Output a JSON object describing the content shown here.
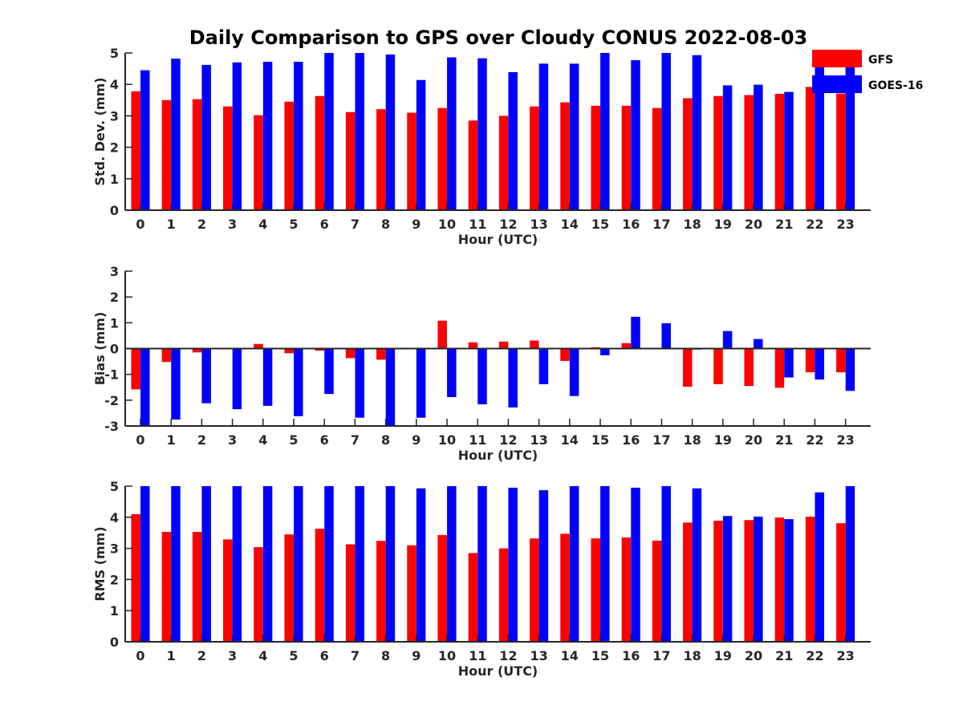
{
  "title": "Daily Comparison to GPS over Cloudy CONUS 2022-08-03",
  "colors": {
    "GFS": "#ff0000",
    "GOES-16": "#0000ff",
    "axis": "#262626"
  },
  "legend": {
    "placement": "top-right",
    "entries": [
      "GFS",
      "GOES-16"
    ]
  },
  "chart_data": [
    {
      "type": "bar",
      "xlabel": "Hour (UTC)",
      "ylabel": "Std. Dev. (mm)",
      "ylim": [
        0,
        5
      ],
      "yticks": [
        "0",
        "1",
        "2",
        "3",
        "4",
        "5"
      ],
      "categories": [
        "0",
        "1",
        "2",
        "3",
        "4",
        "5",
        "6",
        "7",
        "8",
        "9",
        "10",
        "11",
        "12",
        "13",
        "14",
        "15",
        "16",
        "17",
        "18",
        "19",
        "20",
        "21",
        "22",
        "23"
      ],
      "series": [
        {
          "name": "GFS",
          "values": [
            3.78,
            3.5,
            3.53,
            3.3,
            3.02,
            3.45,
            3.63,
            3.12,
            3.21,
            3.1,
            3.25,
            2.85,
            3.0,
            3.3,
            3.43,
            3.32,
            3.32,
            3.25,
            3.56,
            3.63,
            3.66,
            3.7,
            3.92,
            3.71
          ]
        },
        {
          "name": "GOES-16",
          "values": [
            4.45,
            4.82,
            4.62,
            4.7,
            4.72,
            4.72,
            5.0,
            5.0,
            4.95,
            4.14,
            4.86,
            4.83,
            4.39,
            4.66,
            4.66,
            5.0,
            4.77,
            5.0,
            4.93,
            3.97,
            3.99,
            3.76,
            4.62,
            4.64
          ]
        }
      ]
    },
    {
      "type": "bar",
      "xlabel": "Hour (UTC)",
      "ylabel": "Bias (mm)",
      "ylim": [
        -3,
        3
      ],
      "yticks": [
        "-3",
        "-2",
        "-1",
        "0",
        "1",
        "2",
        "3"
      ],
      "categories": [
        "0",
        "1",
        "2",
        "3",
        "4",
        "5",
        "6",
        "7",
        "8",
        "9",
        "10",
        "11",
        "12",
        "13",
        "14",
        "15",
        "16",
        "17",
        "18",
        "19",
        "20",
        "21",
        "22",
        "23"
      ],
      "series": [
        {
          "name": "GFS",
          "values": [
            -1.58,
            -0.52,
            -0.15,
            0.02,
            0.18,
            -0.18,
            -0.08,
            -0.37,
            -0.43,
            -0.02,
            1.08,
            0.24,
            0.27,
            0.31,
            -0.48,
            0.05,
            0.21,
            0.0,
            -1.48,
            -1.38,
            -1.45,
            -1.52,
            -0.92,
            -0.92
          ]
        },
        {
          "name": "GOES-16",
          "values": [
            -3.0,
            -2.75,
            -2.12,
            -2.35,
            -2.22,
            -2.62,
            -1.76,
            -2.68,
            -3.0,
            -2.68,
            -1.88,
            -2.16,
            -2.28,
            -1.38,
            -1.84,
            -0.26,
            1.23,
            0.98,
            -0.04,
            0.68,
            0.37,
            -1.12,
            -1.2,
            -1.64
          ]
        }
      ]
    },
    {
      "type": "bar",
      "xlabel": "Hour (UTC)",
      "ylabel": "RMS (mm)",
      "ylim": [
        0,
        5
      ],
      "yticks": [
        "0",
        "1",
        "2",
        "3",
        "4",
        "5"
      ],
      "categories": [
        "0",
        "1",
        "2",
        "3",
        "4",
        "5",
        "6",
        "7",
        "8",
        "9",
        "10",
        "11",
        "12",
        "13",
        "14",
        "15",
        "16",
        "17",
        "18",
        "19",
        "20",
        "21",
        "22",
        "23"
      ],
      "series": [
        {
          "name": "GFS",
          "values": [
            4.1,
            3.53,
            3.53,
            3.29,
            3.04,
            3.45,
            3.63,
            3.13,
            3.24,
            3.1,
            3.43,
            2.85,
            3.0,
            3.32,
            3.47,
            3.32,
            3.35,
            3.25,
            3.83,
            3.89,
            3.91,
            3.99,
            4.02,
            3.81
          ]
        },
        {
          "name": "GOES-16",
          "values": [
            5.0,
            5.0,
            5.0,
            5.0,
            5.0,
            5.0,
            5.0,
            5.0,
            5.0,
            4.93,
            5.0,
            5.0,
            4.95,
            4.87,
            5.0,
            5.0,
            4.95,
            5.0,
            4.93,
            4.04,
            4.02,
            3.94,
            4.8,
            5.0
          ]
        }
      ]
    }
  ]
}
